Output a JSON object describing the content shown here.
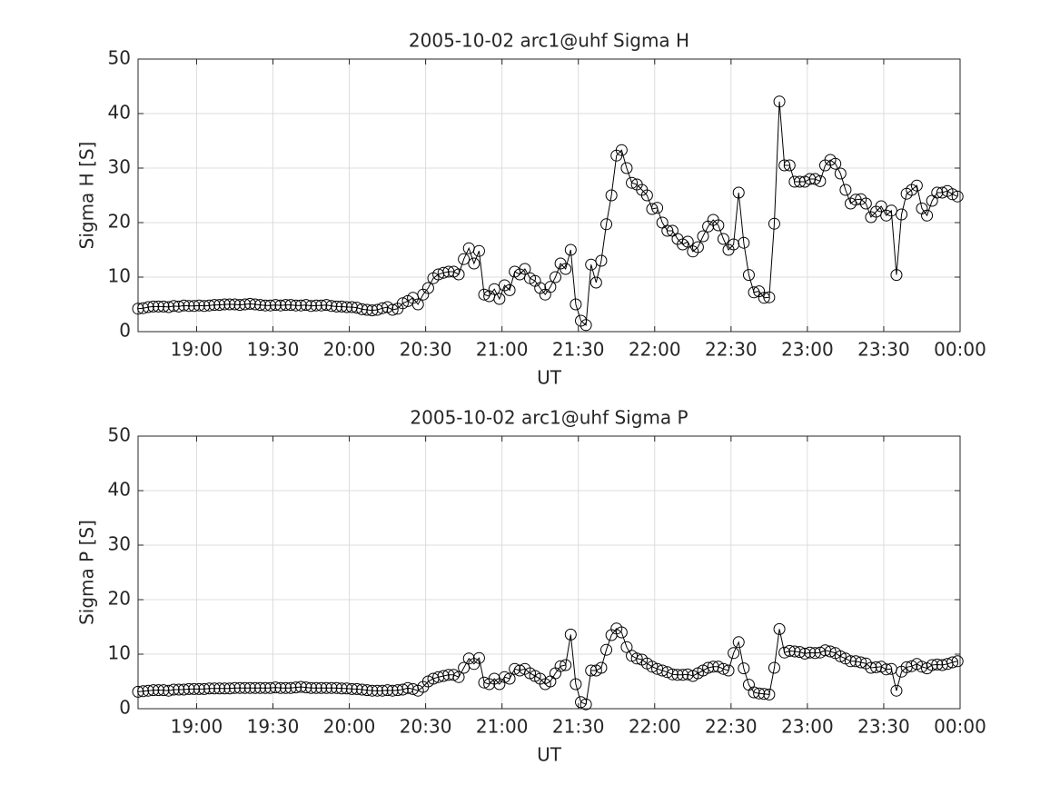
{
  "chart_data": [
    {
      "type": "line",
      "title": "2005-10-02  arc1@uhf Sigma H",
      "xlabel": "UT",
      "ylabel": "Sigma H [S]",
      "color": "#000000",
      "grid": true,
      "xlim": [
        1117,
        1440
      ],
      "ylim": [
        0,
        50
      ],
      "yticks": [
        0,
        10,
        20,
        30,
        40,
        50
      ],
      "xticks": [
        {
          "value": 1140,
          "label": "19:00"
        },
        {
          "value": 1170,
          "label": "19:30"
        },
        {
          "value": 1200,
          "label": "20:00"
        },
        {
          "value": 1230,
          "label": "20:30"
        },
        {
          "value": 1260,
          "label": "21:00"
        },
        {
          "value": 1290,
          "label": "21:30"
        },
        {
          "value": 1320,
          "label": "22:00"
        },
        {
          "value": 1350,
          "label": "22:30"
        },
        {
          "value": 1380,
          "label": "23:00"
        },
        {
          "value": 1410,
          "label": "23:30"
        },
        {
          "value": 1440,
          "label": "00:00"
        }
      ],
      "x": [
        1117,
        1119,
        1121,
        1123,
        1125,
        1127,
        1129,
        1131,
        1133,
        1135,
        1137,
        1139,
        1141,
        1143,
        1145,
        1147,
        1149,
        1151,
        1153,
        1155,
        1157,
        1159,
        1161,
        1163,
        1165,
        1167,
        1169,
        1171,
        1173,
        1175,
        1177,
        1179,
        1181,
        1183,
        1185,
        1187,
        1189,
        1191,
        1193,
        1195,
        1197,
        1199,
        1201,
        1203,
        1205,
        1207,
        1209,
        1211,
        1213,
        1215,
        1217,
        1219,
        1221,
        1223,
        1225,
        1227,
        1229,
        1231,
        1233,
        1235,
        1237,
        1239,
        1241,
        1243,
        1245,
        1247,
        1249,
        1251,
        1253,
        1255,
        1257,
        1259,
        1261,
        1263,
        1265,
        1267,
        1269,
        1271,
        1273,
        1275,
        1277,
        1279,
        1281,
        1283,
        1285,
        1287,
        1289,
        1291,
        1293,
        1295,
        1297,
        1299,
        1301,
        1303,
        1305,
        1307,
        1309,
        1311,
        1313,
        1315,
        1317,
        1319,
        1321,
        1323,
        1325,
        1327,
        1329,
        1331,
        1333,
        1335,
        1337,
        1339,
        1341,
        1343,
        1345,
        1347,
        1349,
        1351,
        1353,
        1355,
        1357,
        1359,
        1361,
        1363,
        1365,
        1367,
        1369,
        1371,
        1373,
        1375,
        1377,
        1379,
        1381,
        1383,
        1385,
        1387,
        1389,
        1391,
        1393,
        1395,
        1397,
        1399,
        1401,
        1403,
        1405,
        1407,
        1409,
        1411,
        1413,
        1415,
        1417,
        1419,
        1421,
        1423,
        1425,
        1427,
        1429,
        1431,
        1433,
        1435,
        1437,
        1439
      ],
      "values": [
        4.2,
        4.3,
        4.5,
        4.6,
        4.6,
        4.6,
        4.5,
        4.7,
        4.6,
        4.8,
        4.7,
        4.7,
        4.8,
        4.7,
        4.8,
        4.9,
        4.9,
        5.0,
        5.0,
        5.0,
        4.9,
        5.0,
        5.1,
        5.0,
        4.9,
        4.8,
        4.8,
        4.9,
        4.8,
        4.9,
        4.9,
        4.8,
        4.8,
        4.9,
        4.7,
        4.8,
        4.8,
        4.9,
        4.7,
        4.6,
        4.6,
        4.5,
        4.5,
        4.4,
        4.1,
        4.0,
        3.9,
        4.0,
        4.3,
        4.5,
        4.0,
        4.2,
        5.2,
        5.6,
        6.2,
        5.0,
        6.8,
        8.0,
        9.8,
        10.5,
        10.8,
        11,
        11,
        10.5,
        13.3,
        15.3,
        12.5,
        14.8,
        6.8,
        6.5,
        7.8,
        6.0,
        8.5,
        7.6,
        11,
        10.5,
        11.5,
        9.8,
        9.3,
        8.0,
        6.8,
        8.2,
        10,
        12.5,
        11.5,
        15,
        5,
        2,
        1.2,
        12.3,
        9,
        13,
        19.7,
        25,
        32.3,
        33.3,
        30,
        27.3,
        27,
        26,
        25,
        22.5,
        22.7,
        20,
        18.5,
        18.5,
        17,
        16,
        16.5,
        14.7,
        15.5,
        17.5,
        19.3,
        20.5,
        19.5,
        17,
        15,
        16,
        25.5,
        16.3,
        10.4,
        7.2,
        7.4,
        6.2,
        6.3,
        19.8,
        42.2,
        30.5,
        30.5,
        27.5,
        27.5,
        27.5,
        28,
        28,
        27.6,
        30.5,
        31.5,
        30.8,
        29,
        26,
        23.5,
        24.2,
        24.3,
        23.5,
        21,
        22,
        23,
        21.3,
        22.2,
        10.4,
        21.5,
        25.3,
        26,
        26.8,
        22.6,
        21.3,
        24,
        25.5,
        25.5,
        25.8,
        25.2,
        24.8
      ]
    },
    {
      "type": "line",
      "title": "2005-10-02  arc1@uhf Sigma P",
      "xlabel": "UT",
      "ylabel": "Sigma P [S]",
      "color": "#000000",
      "grid": true,
      "xlim": [
        1117,
        1440
      ],
      "ylim": [
        0,
        50
      ],
      "yticks": [
        0,
        10,
        20,
        30,
        40,
        50
      ],
      "xticks": [
        {
          "value": 1140,
          "label": "19:00"
        },
        {
          "value": 1170,
          "label": "19:30"
        },
        {
          "value": 1200,
          "label": "20:00"
        },
        {
          "value": 1230,
          "label": "20:30"
        },
        {
          "value": 1260,
          "label": "21:00"
        },
        {
          "value": 1290,
          "label": "21:30"
        },
        {
          "value": 1320,
          "label": "22:00"
        },
        {
          "value": 1350,
          "label": "22:30"
        },
        {
          "value": 1380,
          "label": "23:00"
        },
        {
          "value": 1410,
          "label": "23:30"
        },
        {
          "value": 1440,
          "label": "00:00"
        }
      ],
      "x": [
        1117,
        1119,
        1121,
        1123,
        1125,
        1127,
        1129,
        1131,
        1133,
        1135,
        1137,
        1139,
        1141,
        1143,
        1145,
        1147,
        1149,
        1151,
        1153,
        1155,
        1157,
        1159,
        1161,
        1163,
        1165,
        1167,
        1169,
        1171,
        1173,
        1175,
        1177,
        1179,
        1181,
        1183,
        1185,
        1187,
        1189,
        1191,
        1193,
        1195,
        1197,
        1199,
        1201,
        1203,
        1205,
        1207,
        1209,
        1211,
        1213,
        1215,
        1217,
        1219,
        1221,
        1223,
        1225,
        1227,
        1229,
        1231,
        1233,
        1235,
        1237,
        1239,
        1241,
        1243,
        1245,
        1247,
        1249,
        1251,
        1253,
        1255,
        1257,
        1259,
        1261,
        1263,
        1265,
        1267,
        1269,
        1271,
        1273,
        1275,
        1277,
        1279,
        1281,
        1283,
        1285,
        1287,
        1289,
        1291,
        1293,
        1295,
        1297,
        1299,
        1301,
        1303,
        1305,
        1307,
        1309,
        1311,
        1313,
        1315,
        1317,
        1319,
        1321,
        1323,
        1325,
        1327,
        1329,
        1331,
        1333,
        1335,
        1337,
        1339,
        1341,
        1343,
        1345,
        1347,
        1349,
        1351,
        1353,
        1355,
        1357,
        1359,
        1361,
        1363,
        1365,
        1367,
        1369,
        1371,
        1373,
        1375,
        1377,
        1379,
        1381,
        1383,
        1385,
        1387,
        1389,
        1391,
        1393,
        1395,
        1397,
        1399,
        1401,
        1403,
        1405,
        1407,
        1409,
        1411,
        1413,
        1415,
        1417,
        1419,
        1421,
        1423,
        1425,
        1427,
        1429,
        1431,
        1433,
        1435,
        1437,
        1439
      ],
      "values": [
        3.1,
        3.2,
        3.3,
        3.4,
        3.4,
        3.4,
        3.3,
        3.5,
        3.5,
        3.5,
        3.6,
        3.6,
        3.6,
        3.6,
        3.7,
        3.7,
        3.7,
        3.7,
        3.7,
        3.8,
        3.8,
        3.8,
        3.8,
        3.8,
        3.8,
        3.8,
        3.8,
        3.9,
        3.8,
        3.8,
        3.8,
        3.9,
        4.0,
        3.9,
        3.8,
        3.8,
        3.8,
        3.8,
        3.8,
        3.8,
        3.7,
        3.7,
        3.6,
        3.6,
        3.5,
        3.4,
        3.3,
        3.3,
        3.3,
        3.4,
        3.3,
        3.4,
        3.5,
        3.8,
        3.6,
        3.3,
        4.0,
        5.0,
        5.5,
        5.8,
        6.0,
        6.2,
        6.2,
        5.8,
        7.5,
        9.2,
        8.2,
        9.3,
        4.8,
        4.5,
        5.5,
        4.5,
        5.8,
        5.5,
        7.3,
        7.0,
        7.3,
        6.5,
        6.0,
        5.5,
        4.5,
        5.0,
        6.5,
        7.8,
        8.0,
        13.6,
        4.5,
        1.2,
        0.8,
        7.0,
        7.0,
        7.5,
        10.8,
        13.5,
        14.7,
        14.0,
        11.3,
        9.7,
        9.2,
        9.0,
        8.3,
        7.7,
        7.3,
        7.0,
        6.7,
        6.3,
        6.2,
        6.2,
        6.3,
        6.0,
        6.5,
        7.0,
        7.5,
        7.7,
        7.7,
        7.3,
        7.0,
        10.2,
        12.2,
        7.4,
        4.4,
        3.0,
        2.8,
        2.7,
        2.6,
        7.5,
        14.6,
        10.3,
        10.6,
        10.5,
        10.4,
        10.1,
        10.3,
        10.2,
        10.3,
        10.7,
        10.5,
        10.2,
        9.6,
        9.2,
        8.7,
        8.7,
        8.5,
        8.3,
        7.5,
        7.6,
        7.7,
        7.2,
        7.3,
        3.3,
        6.8,
        7.6,
        7.8,
        8.2,
        7.7,
        7.4,
        8.0,
        8.1,
        8.0,
        8.2,
        8.5,
        8.7
      ]
    }
  ]
}
